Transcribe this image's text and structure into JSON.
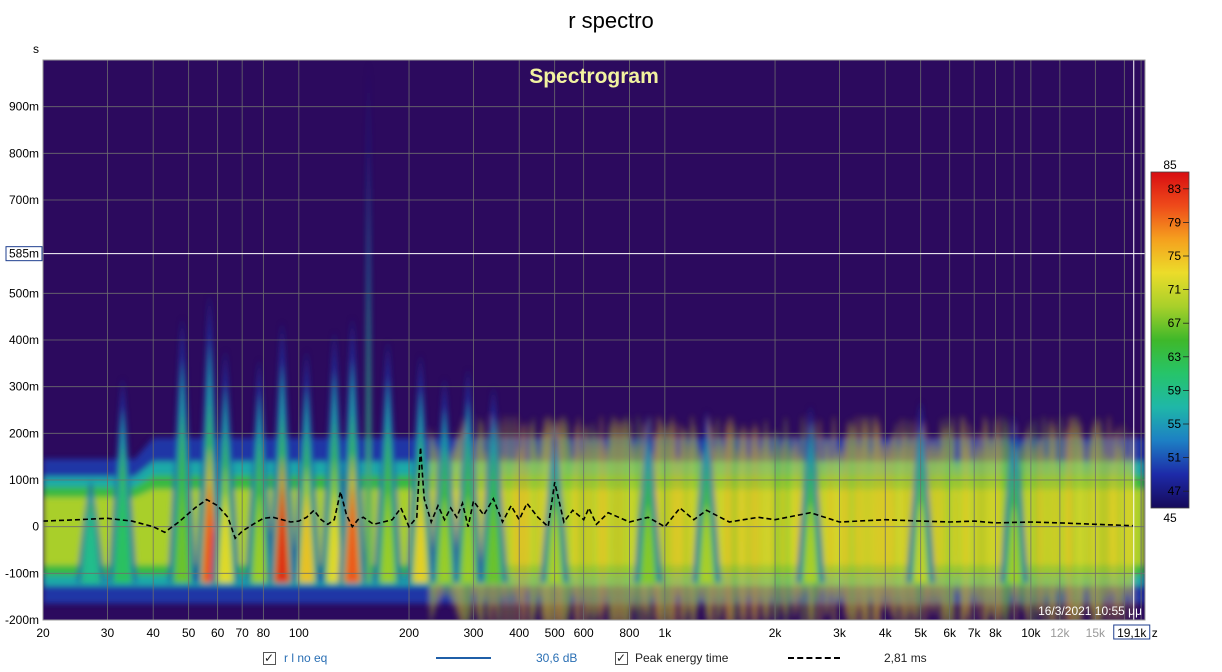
{
  "title": "r spectro",
  "colors": {
    "plot_bg": "#2c0a5e",
    "grid": "#6d6d6d",
    "spectrogram_title": "#f2f2a0",
    "cursor_line": "#ffffff",
    "peak_line": "#000000",
    "legend_series1": "#1f5fa8",
    "legend_value1": "#2a6fb4"
  },
  "chart_data": {
    "type": "heatmap",
    "title": "Spectrogram",
    "ylabel": "s",
    "xscale": "log",
    "xlim": [
      20,
      20500
    ],
    "ylim": [
      -0.2,
      1.0
    ],
    "x_ticks": [
      {
        "v": 20,
        "label": "20"
      },
      {
        "v": 30,
        "label": "30"
      },
      {
        "v": 40,
        "label": "40"
      },
      {
        "v": 50,
        "label": "50"
      },
      {
        "v": 60,
        "label": "60"
      },
      {
        "v": 70,
        "label": "70"
      },
      {
        "v": 80,
        "label": "80"
      },
      {
        "v": 100,
        "label": "100"
      },
      {
        "v": 200,
        "label": "200"
      },
      {
        "v": 300,
        "label": "300"
      },
      {
        "v": 400,
        "label": "400"
      },
      {
        "v": 500,
        "label": "500"
      },
      {
        "v": 600,
        "label": "600"
      },
      {
        "v": 800,
        "label": "800"
      },
      {
        "v": 1000,
        "label": "1k"
      },
      {
        "v": 2000,
        "label": "2k"
      },
      {
        "v": 3000,
        "label": "3k"
      },
      {
        "v": 4000,
        "label": "4k"
      },
      {
        "v": 5000,
        "label": "5k"
      },
      {
        "v": 6000,
        "label": "6k"
      },
      {
        "v": 7000,
        "label": "7k"
      },
      {
        "v": 8000,
        "label": "8k"
      },
      {
        "v": 10000,
        "label": "10k"
      },
      {
        "v": 12000,
        "label": "12k",
        "grey": true
      },
      {
        "v": 15000,
        "label": "15k",
        "grey": true
      }
    ],
    "y_ticks": [
      {
        "v": 0.9,
        "label": "900m"
      },
      {
        "v": 0.8,
        "label": "800m"
      },
      {
        "v": 0.7,
        "label": "700m"
      },
      {
        "v": 0.5,
        "label": "500m"
      },
      {
        "v": 0.4,
        "label": "400m"
      },
      {
        "v": 0.3,
        "label": "300m"
      },
      {
        "v": 0.2,
        "label": "200m"
      },
      {
        "v": 0.1,
        "label": "100m"
      },
      {
        "v": 0.0,
        "label": "0"
      },
      {
        "v": -0.1,
        "label": "-100m"
      },
      {
        "v": -0.2,
        "label": "-200m"
      }
    ],
    "grid": true,
    "cursor": {
      "x": 19100,
      "x_label": "19,1k",
      "x_unit_suffix": "z",
      "y": 0.585,
      "y_label": "585m"
    },
    "timestamp": "16/3/2021 10:55 μμ",
    "colorbar": {
      "min": 45,
      "max": 85,
      "min_label": "45",
      "max_label": "85",
      "tick_labels": [
        "83",
        "79",
        "75",
        "71",
        "67",
        "63",
        "59",
        "55",
        "51",
        "47"
      ],
      "stops": [
        "#160a5a",
        "#1d2aa8",
        "#1d7fc4",
        "#1fb7a8",
        "#26c46a",
        "#3fb82a",
        "#a8d02a",
        "#ecdc2a",
        "#f5a01e",
        "#ee4a1a",
        "#d80d12"
      ]
    },
    "resonances": [
      {
        "f": 27,
        "top": 0.1,
        "level": 0.35
      },
      {
        "f": 33,
        "top": 0.32,
        "level": 0.42
      },
      {
        "f": 48,
        "top": 0.45,
        "level": 0.55
      },
      {
        "f": 57,
        "top": 0.5,
        "level": 0.9
      },
      {
        "f": 63,
        "top": 0.38,
        "level": 0.7
      },
      {
        "f": 78,
        "top": 0.36,
        "level": 0.6
      },
      {
        "f": 90,
        "top": 0.44,
        "level": 0.97
      },
      {
        "f": 105,
        "top": 0.38,
        "level": 0.75
      },
      {
        "f": 125,
        "top": 0.42,
        "level": 0.7
      },
      {
        "f": 140,
        "top": 0.45,
        "level": 0.9
      },
      {
        "f": 155,
        "top": 1.0,
        "level": 0.55
      },
      {
        "f": 175,
        "top": 0.4,
        "level": 0.6
      },
      {
        "f": 215,
        "top": 0.37,
        "level": 0.72
      },
      {
        "f": 250,
        "top": 0.32,
        "level": 0.6
      },
      {
        "f": 290,
        "top": 0.34,
        "level": 0.6
      },
      {
        "f": 340,
        "top": 0.3,
        "level": 0.55
      },
      {
        "f": 500,
        "top": 0.22,
        "level": 0.62
      },
      {
        "f": 900,
        "top": 0.24,
        "level": 0.58
      },
      {
        "f": 1300,
        "top": 0.25,
        "level": 0.62
      },
      {
        "f": 2500,
        "top": 0.26,
        "level": 0.62
      },
      {
        "f": 5000,
        "top": 0.27,
        "level": 0.65
      },
      {
        "f": 9000,
        "top": 0.24,
        "level": 0.6
      }
    ],
    "series": [
      {
        "name": "Peak energy time",
        "style": "dashed",
        "x": [
          20,
          25,
          30,
          35,
          40,
          43,
          47,
          52,
          56,
          60,
          64,
          67,
          70,
          75,
          80,
          85,
          90,
          95,
          100,
          105,
          110,
          115,
          120,
          125,
          130,
          135,
          140,
          145,
          150,
          160,
          170,
          180,
          190,
          200,
          210,
          215,
          220,
          230,
          240,
          250,
          260,
          270,
          280,
          290,
          300,
          320,
          340,
          360,
          380,
          400,
          420,
          450,
          480,
          500,
          530,
          560,
          600,
          620,
          650,
          700,
          800,
          900,
          1000,
          1100,
          1200,
          1300,
          1500,
          1800,
          2000,
          2500,
          3000,
          4000,
          5000,
          6000,
          7000,
          8000,
          10000,
          12000,
          15000,
          19000
        ],
        "y": [
          0.012,
          0.015,
          0.018,
          0.012,
          0.0,
          -0.012,
          0.01,
          0.04,
          0.058,
          0.045,
          0.02,
          -0.025,
          -0.01,
          0.005,
          0.018,
          0.02,
          0.015,
          0.01,
          0.012,
          0.02,
          0.035,
          0.015,
          0.005,
          0.015,
          0.075,
          0.025,
          0.0,
          0.015,
          0.02,
          0.005,
          0.01,
          0.015,
          0.04,
          0.0,
          0.02,
          0.17,
          0.06,
          0.01,
          0.045,
          0.015,
          0.04,
          0.02,
          0.05,
          0.0,
          0.055,
          0.025,
          0.06,
          0.01,
          0.045,
          0.015,
          0.05,
          0.02,
          0.0,
          0.095,
          0.01,
          0.035,
          0.015,
          0.04,
          0.005,
          0.03,
          0.01,
          0.02,
          0.0,
          0.04,
          0.015,
          0.035,
          0.01,
          0.02,
          0.015,
          0.03,
          0.01,
          0.015,
          0.012,
          0.01,
          0.012,
          0.008,
          0.01,
          0.008,
          0.005,
          0.002
        ]
      }
    ]
  },
  "legend": {
    "item1_label": "r l no eq",
    "item1_value": "30,6 dB",
    "item2_label": "Peak energy time",
    "item2_value": "2,81 ms"
  }
}
